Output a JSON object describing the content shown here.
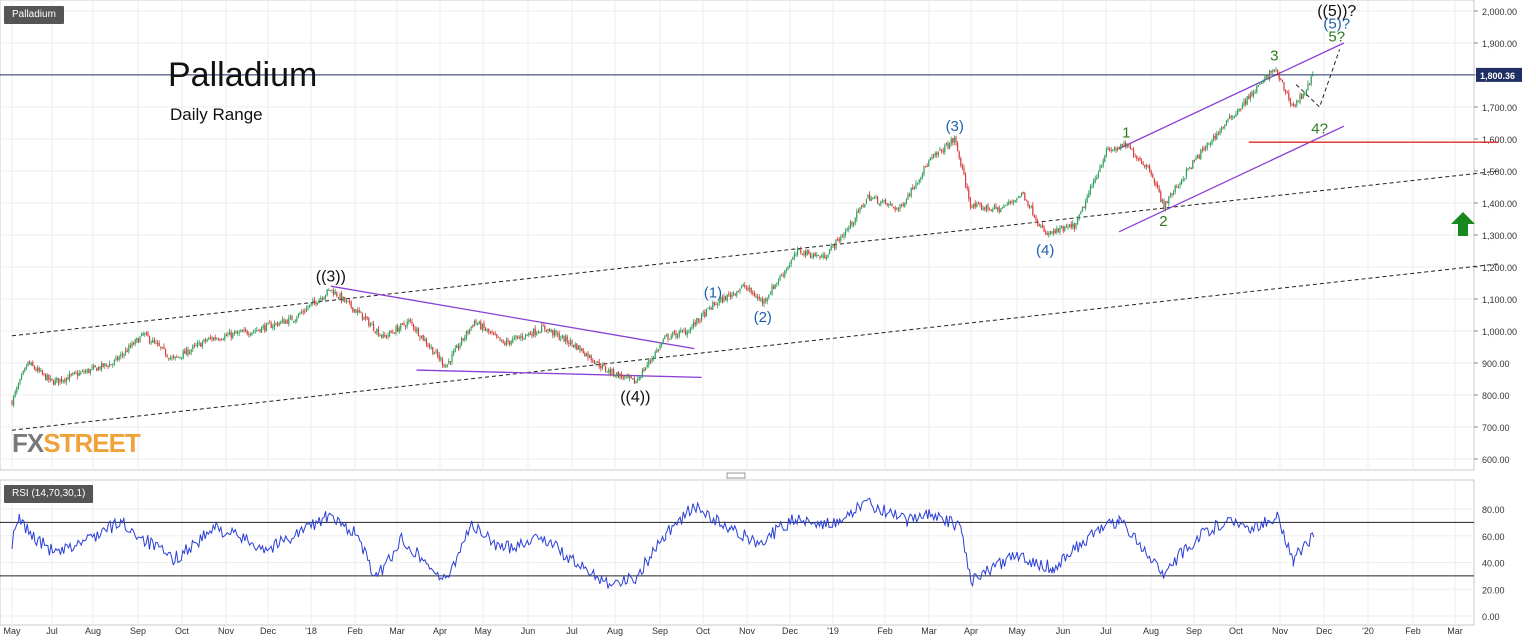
{
  "price_panel": {
    "instrument_tag": "Palladium",
    "title": "Palladium",
    "subtitle": "Daily Range"
  },
  "rsi_panel": {
    "indicator_tag": "RSI (14,70,30,1)"
  },
  "logo": {
    "part1": "FX",
    "part2": "STREET"
  },
  "colors": {
    "up_candle": "#2e9e5b",
    "down_candle": "#d83b3b",
    "rsi_line": "#2b3fd6",
    "channel": "#8a3fd6",
    "support": "#e0292b",
    "price_line": "#1f2f63",
    "wave_blue": "#1f5fb0",
    "wave_green": "#2a7d1a",
    "arrow": "#18891e"
  },
  "chart_data": [
    {
      "type": "line",
      "title": "Palladium",
      "subtitle": "Daily Range",
      "y_axis": {
        "min": 600,
        "max": 2000,
        "ticks": [
          "2,000.00",
          "1,900.00",
          "1,800.00",
          "1,700.00",
          "1,600.00",
          "1,500.00",
          "1,400.00",
          "1,300.00",
          "1,200.00",
          "1,100.00",
          "1,000.00",
          "900.00",
          "800.00",
          "700.00",
          "600.00"
        ]
      },
      "x_axis_labels": [
        "May",
        "Jul",
        "Aug",
        "Sep",
        "Oct",
        "Nov",
        "Dec",
        "'18",
        "Feb",
        "Mar",
        "Apr",
        "May",
        "Jun",
        "Jul",
        "Aug",
        "Sep",
        "Oct",
        "Nov",
        "Dec",
        "'19",
        "Feb",
        "Mar",
        "Apr",
        "May",
        "Jun",
        "Jul",
        "Aug",
        "Sep",
        "Oct",
        "Nov",
        "Dec",
        "'20",
        "Feb",
        "Mar"
      ],
      "current_price": {
        "value": 1800.36,
        "label": "1,800.36"
      },
      "support_level": 1590,
      "price_path": [
        {
          "x": "2017-05-01",
          "y": 780
        },
        {
          "x": "2017-05-25",
          "y": 900
        },
        {
          "x": "2017-07-01",
          "y": 840
        },
        {
          "x": "2017-08-15",
          "y": 900
        },
        {
          "x": "2017-09-05",
          "y": 990
        },
        {
          "x": "2017-09-25",
          "y": 910
        },
        {
          "x": "2017-10-20",
          "y": 975
        },
        {
          "x": "2017-11-20",
          "y": 1000
        },
        {
          "x": "2017-12-20",
          "y": 1040
        },
        {
          "x": "2018-01-15",
          "y": 1130
        },
        {
          "x": "2018-02-05",
          "y": 1050
        },
        {
          "x": "2018-02-20",
          "y": 980
        },
        {
          "x": "2018-03-10",
          "y": 1030
        },
        {
          "x": "2018-04-05",
          "y": 890
        },
        {
          "x": "2018-04-25",
          "y": 1030
        },
        {
          "x": "2018-05-15",
          "y": 960
        },
        {
          "x": "2018-06-12",
          "y": 1010
        },
        {
          "x": "2018-07-05",
          "y": 950
        },
        {
          "x": "2018-07-25",
          "y": 880
        },
        {
          "x": "2018-08-15",
          "y": 840
        },
        {
          "x": "2018-09-05",
          "y": 980
        },
        {
          "x": "2018-09-20",
          "y": 1000
        },
        {
          "x": "2018-10-08",
          "y": 1080
        },
        {
          "x": "2018-10-30",
          "y": 1140
        },
        {
          "x": "2018-11-12",
          "y": 1090
        },
        {
          "x": "2018-12-07",
          "y": 1250
        },
        {
          "x": "2018-12-25",
          "y": 1230
        },
        {
          "x": "2019-01-10",
          "y": 1320
        },
        {
          "x": "2019-01-22",
          "y": 1420
        },
        {
          "x": "2019-02-10",
          "y": 1380
        },
        {
          "x": "2019-03-01",
          "y": 1530
        },
        {
          "x": "2019-03-20",
          "y": 1600
        },
        {
          "x": "2019-04-01",
          "y": 1390
        },
        {
          "x": "2019-04-20",
          "y": 1380
        },
        {
          "x": "2019-05-05",
          "y": 1430
        },
        {
          "x": "2019-05-20",
          "y": 1300
        },
        {
          "x": "2019-06-10",
          "y": 1330
        },
        {
          "x": "2019-07-01",
          "y": 1560
        },
        {
          "x": "2019-07-15",
          "y": 1580
        },
        {
          "x": "2019-08-01",
          "y": 1500
        },
        {
          "x": "2019-08-10",
          "y": 1390
        },
        {
          "x": "2019-09-01",
          "y": 1530
        },
        {
          "x": "2019-09-20",
          "y": 1630
        },
        {
          "x": "2019-10-10",
          "y": 1730
        },
        {
          "x": "2019-10-28",
          "y": 1820
        },
        {
          "x": "2019-11-10",
          "y": 1700
        },
        {
          "x": "2019-11-18",
          "y": 1750
        },
        {
          "x": "2019-11-24",
          "y": 1800
        }
      ],
      "wave_labels": [
        {
          "text": "((3))",
          "x": "2018-01-15",
          "y": 1130,
          "color": "#111111",
          "pos": "above"
        },
        {
          "text": "((4))",
          "x": "2018-08-15",
          "y": 840,
          "color": "#111111",
          "pos": "below"
        },
        {
          "text": "(1)",
          "x": "2018-10-08",
          "y": 1080,
          "color": "#1f5fb0",
          "pos": "above"
        },
        {
          "text": "(2)",
          "x": "2018-11-12",
          "y": 1090,
          "color": "#1f5fb0",
          "pos": "below"
        },
        {
          "text": "(3)",
          "x": "2019-03-20",
          "y": 1600,
          "color": "#1f5fb0",
          "pos": "above"
        },
        {
          "text": "(4)",
          "x": "2019-05-20",
          "y": 1300,
          "color": "#1f5fb0",
          "pos": "below"
        },
        {
          "text": "1",
          "x": "2019-07-15",
          "y": 1580,
          "color": "#2a7d1a",
          "pos": "above"
        },
        {
          "text": "2",
          "x": "2019-08-10",
          "y": 1390,
          "color": "#2a7d1a",
          "pos": "below"
        },
        {
          "text": "3",
          "x": "2019-10-28",
          "y": 1820,
          "color": "#2a7d1a",
          "pos": "above"
        },
        {
          "text": "4?",
          "x": "2019-11-28",
          "y": 1680,
          "color": "#2a7d1a",
          "pos": "below"
        },
        {
          "text": "5?",
          "x": "2019-12-10",
          "y": 1880,
          "color": "#2a7d1a",
          "pos": "above"
        },
        {
          "text": "(5)?",
          "x": "2019-12-10",
          "y": 1920,
          "color": "#1f5fb0",
          "pos": "above"
        },
        {
          "text": "((5))?",
          "x": "2019-12-10",
          "y": 1960,
          "color": "#111111",
          "pos": "above"
        }
      ],
      "projection_path": [
        {
          "x": "2019-11-12",
          "y": 1770
        },
        {
          "x": "2019-11-28",
          "y": 1700
        },
        {
          "x": "2019-12-12",
          "y": 1880
        }
      ],
      "trend_lines": [
        {
          "kind": "dashed",
          "from": {
            "x": "2017-05-01",
            "y": 985
          },
          "to": {
            "x": "2020-03-31",
            "y": 1500
          }
        },
        {
          "kind": "dashed",
          "from": {
            "x": "2017-05-01",
            "y": 690
          },
          "to": {
            "x": "2020-03-31",
            "y": 1210
          }
        },
        {
          "kind": "channel",
          "from": {
            "x": "2018-01-15",
            "y": 1140
          },
          "to": {
            "x": "2018-09-25",
            "y": 945
          }
        },
        {
          "kind": "channel",
          "from": {
            "x": "2018-03-15",
            "y": 878
          },
          "to": {
            "x": "2018-09-30",
            "y": 855
          }
        },
        {
          "kind": "channel",
          "from": {
            "x": "2019-07-10",
            "y": 1570
          },
          "to": {
            "x": "2019-12-15",
            "y": 1900
          }
        },
        {
          "kind": "channel",
          "from": {
            "x": "2019-07-10",
            "y": 1310
          },
          "to": {
            "x": "2019-12-15",
            "y": 1640
          }
        },
        {
          "kind": "support",
          "from": {
            "x": "2019-10-10",
            "y": 1590
          },
          "to": {
            "x": "2020-03-31",
            "y": 1590
          }
        }
      ]
    },
    {
      "type": "line",
      "title": "RSI (14,70,30,1)",
      "y_axis": {
        "min": 0,
        "max": 90,
        "ticks": [
          "80.00",
          "60.00",
          "40.00",
          "20.00",
          "0.00"
        ]
      },
      "levels": [
        70,
        30
      ],
      "rsi_path": [
        {
          "x": "2017-05-01",
          "y": 55
        },
        {
          "x": "2017-05-12",
          "y": 72
        },
        {
          "x": "2017-06-05",
          "y": 58
        },
        {
          "x": "2017-07-05",
          "y": 46
        },
        {
          "x": "2017-08-20",
          "y": 70
        },
        {
          "x": "2017-09-25",
          "y": 42
        },
        {
          "x": "2017-10-25",
          "y": 66
        },
        {
          "x": "2017-12-01",
          "y": 50
        },
        {
          "x": "2018-01-12",
          "y": 74
        },
        {
          "x": "2018-02-01",
          "y": 63
        },
        {
          "x": "2018-02-15",
          "y": 28
        },
        {
          "x": "2018-03-05",
          "y": 58
        },
        {
          "x": "2018-04-05",
          "y": 25
        },
        {
          "x": "2018-04-22",
          "y": 68
        },
        {
          "x": "2018-05-15",
          "y": 50
        },
        {
          "x": "2018-06-10",
          "y": 60
        },
        {
          "x": "2018-07-05",
          "y": 38
        },
        {
          "x": "2018-07-28",
          "y": 25
        },
        {
          "x": "2018-08-15",
          "y": 28
        },
        {
          "x": "2018-09-05",
          "y": 62
        },
        {
          "x": "2018-09-25",
          "y": 82
        },
        {
          "x": "2018-10-20",
          "y": 64
        },
        {
          "x": "2018-11-10",
          "y": 55
        },
        {
          "x": "2018-12-05",
          "y": 73
        },
        {
          "x": "2019-01-05",
          "y": 68
        },
        {
          "x": "2019-01-20",
          "y": 86
        },
        {
          "x": "2019-02-15",
          "y": 70
        },
        {
          "x": "2019-03-01",
          "y": 78
        },
        {
          "x": "2019-03-25",
          "y": 65
        },
        {
          "x": "2019-04-01",
          "y": 27
        },
        {
          "x": "2019-05-01",
          "y": 45
        },
        {
          "x": "2019-05-25",
          "y": 36
        },
        {
          "x": "2019-06-20",
          "y": 60
        },
        {
          "x": "2019-07-10",
          "y": 72
        },
        {
          "x": "2019-08-10",
          "y": 33
        },
        {
          "x": "2019-09-05",
          "y": 60
        },
        {
          "x": "2019-09-25",
          "y": 72
        },
        {
          "x": "2019-10-10",
          "y": 66
        },
        {
          "x": "2019-10-30",
          "y": 74
        },
        {
          "x": "2019-11-10",
          "y": 42
        },
        {
          "x": "2019-11-24",
          "y": 59
        }
      ]
    }
  ]
}
